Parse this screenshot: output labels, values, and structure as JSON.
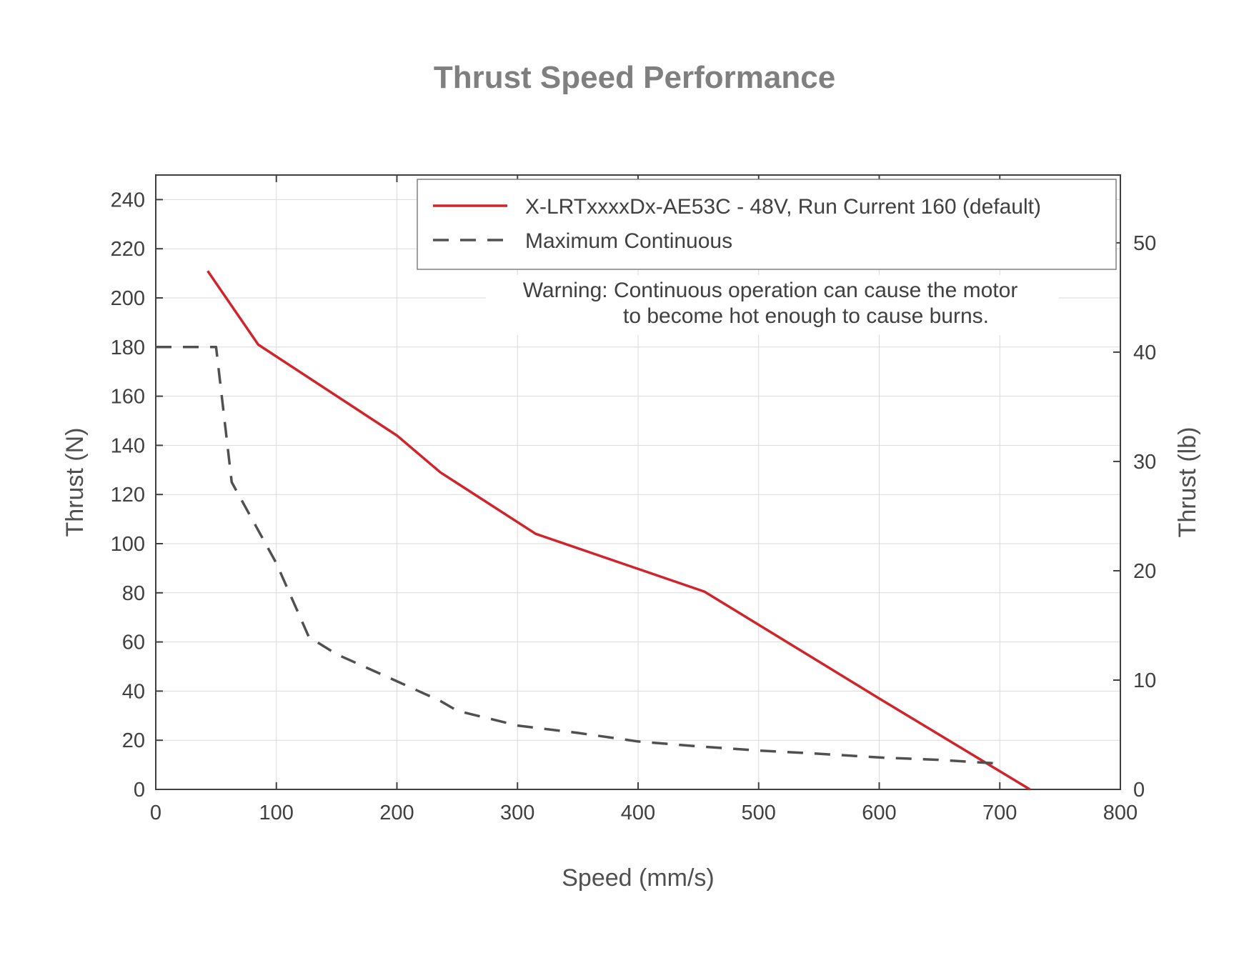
{
  "chart_data": {
    "type": "line",
    "title": "Thrust Speed Performance",
    "xlabel": "Speed (mm/s)",
    "ylabel": "Thrust (N)",
    "y2label": "Thrust (lb)",
    "xlim": [
      0,
      800
    ],
    "ylim": [
      0,
      250
    ],
    "y2lim": [
      0,
      56.2
    ],
    "x_ticks": [
      0,
      100,
      200,
      300,
      400,
      500,
      600,
      700,
      800
    ],
    "y_ticks": [
      0,
      20,
      40,
      60,
      80,
      100,
      120,
      140,
      160,
      180,
      200,
      220,
      240
    ],
    "y2_ticks": [
      0,
      10,
      20,
      30,
      40,
      50
    ],
    "grid": true,
    "legend_position": "top-right",
    "series": [
      {
        "name": "X-LRTxxxxDx-AE53C - 48V, Run Current 160 (default)",
        "style": "solid",
        "color": "#d0232a",
        "points": [
          [
            43,
            211
          ],
          [
            85,
            181
          ],
          [
            200,
            144
          ],
          [
            236,
            129
          ],
          [
            315,
            104
          ],
          [
            455,
            80.5
          ],
          [
            600,
            37
          ],
          [
            725,
            0
          ]
        ]
      },
      {
        "name": "Maximum Continuous",
        "style": "dashed",
        "color": "#505050",
        "points": [
          [
            0,
            180
          ],
          [
            48,
            180
          ],
          [
            50,
            180
          ],
          [
            63,
            125
          ],
          [
            100,
            92
          ],
          [
            127,
            62
          ],
          [
            150,
            55
          ],
          [
            200,
            44
          ],
          [
            236,
            36
          ],
          [
            250,
            32
          ],
          [
            300,
            26
          ],
          [
            350,
            23
          ],
          [
            400,
            19.5
          ],
          [
            450,
            17.5
          ],
          [
            500,
            15.8
          ],
          [
            550,
            14.5
          ],
          [
            600,
            13
          ],
          [
            650,
            12
          ],
          [
            700,
            10.5
          ]
        ]
      }
    ],
    "annotation": {
      "line1": "Warning: Continuous operation can cause the motor",
      "line2": "to become hot enough to cause burns."
    }
  }
}
